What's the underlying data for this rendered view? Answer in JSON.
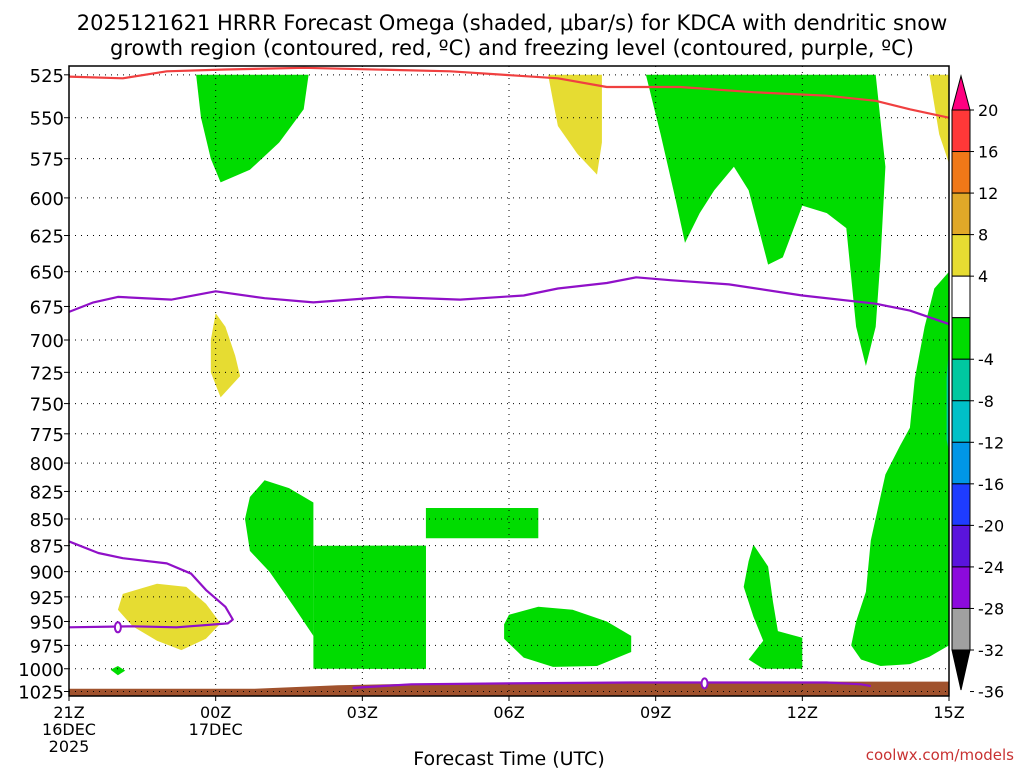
{
  "chart_data": {
    "type": "heatmap",
    "title_line1": "2025121621 HRRR Forecast Omega (shaded, μbar/s) for KDCA with dendritic snow",
    "title_line2": "growth region (contoured, red, ºC) and freezing level (contoured, purple, ºC)",
    "xlabel": "Forecast Time (UTC)",
    "credit": "coolwx.com/models",
    "x_ticks": [
      {
        "h": 0,
        "label": "21Z",
        "sub1": "16DEC",
        "sub2": "2025"
      },
      {
        "h": 3,
        "label": "00Z",
        "sub1": "17DEC",
        "sub2": ""
      },
      {
        "h": 6,
        "label": "03Z",
        "sub1": "",
        "sub2": ""
      },
      {
        "h": 9,
        "label": "06Z",
        "sub1": "",
        "sub2": ""
      },
      {
        "h": 12,
        "label": "09Z",
        "sub1": "",
        "sub2": ""
      },
      {
        "h": 15,
        "label": "12Z",
        "sub1": "",
        "sub2": ""
      },
      {
        "h": 18,
        "label": "15Z",
        "sub1": "",
        "sub2": ""
      }
    ],
    "xlim": [
      0,
      18
    ],
    "y_levels": [
      525,
      550,
      575,
      600,
      625,
      650,
      675,
      700,
      725,
      750,
      775,
      800,
      825,
      850,
      875,
      900,
      925,
      950,
      975,
      1000,
      1025
    ],
    "ylim": [
      520,
      1030
    ],
    "y_scale": "log-pressure",
    "grid": true,
    "colorbar": {
      "labels": [
        "20",
        "16",
        "12",
        "8",
        "4",
        "-4",
        "-8",
        "-12",
        "-16",
        "-20",
        "-24",
        "-28",
        "-32",
        "-36"
      ],
      "colors": [
        "#ff0080",
        "#ff3838",
        "#f07818",
        "#e0a828",
        "#e6dc32",
        "#ffffff",
        "#00dc00",
        "#00c8a0",
        "#00c0c8",
        "#0096e6",
        "#1e3cff",
        "#5a14dc",
        "#8c0adc",
        "#a0a0a0",
        "#000000"
      ]
    },
    "omega_regions": [
      {
        "color": "#00dc00",
        "pts": [
          [
            2.6,
            525
          ],
          [
            4.9,
            525
          ],
          [
            4.8,
            545
          ],
          [
            4.3,
            565
          ],
          [
            3.7,
            582
          ],
          [
            3.1,
            590
          ],
          [
            2.9,
            575
          ],
          [
            2.7,
            550
          ]
        ]
      },
      {
        "color": "#e6dc32",
        "pts": [
          [
            9.8,
            525
          ],
          [
            10.9,
            525
          ],
          [
            10.9,
            565
          ],
          [
            10.8,
            585
          ],
          [
            10.4,
            572
          ],
          [
            10.0,
            555
          ],
          [
            9.9,
            540
          ]
        ]
      },
      {
        "color": "#00dc00",
        "pts": [
          [
            11.8,
            525
          ],
          [
            16.5,
            525
          ],
          [
            16.7,
            580
          ],
          [
            16.6,
            640
          ],
          [
            16.5,
            690
          ],
          [
            16.3,
            720
          ],
          [
            16.1,
            690
          ],
          [
            15.9,
            620
          ],
          [
            15.5,
            610
          ],
          [
            15.0,
            605
          ],
          [
            14.6,
            640
          ],
          [
            14.3,
            645
          ],
          [
            13.9,
            595
          ],
          [
            13.6,
            580
          ],
          [
            13.2,
            595
          ],
          [
            12.9,
            610
          ],
          [
            12.6,
            630
          ],
          [
            12.4,
            600
          ],
          [
            12.1,
            560
          ]
        ]
      },
      {
        "color": "#e6dc32",
        "pts": [
          [
            17.6,
            525
          ],
          [
            18.0,
            525
          ],
          [
            18.0,
            578
          ],
          [
            17.8,
            560
          ]
        ]
      },
      {
        "color": "#e6dc32",
        "pts": [
          [
            3.0,
            680
          ],
          [
            3.2,
            690
          ],
          [
            3.4,
            712
          ],
          [
            3.5,
            728
          ],
          [
            3.1,
            745
          ],
          [
            2.9,
            725
          ],
          [
            2.9,
            700
          ]
        ]
      },
      {
        "color": "#00dc00",
        "pts": [
          [
            18.0,
            650
          ],
          [
            17.7,
            662
          ],
          [
            17.5,
            690
          ],
          [
            17.3,
            730
          ],
          [
            17.2,
            770
          ],
          [
            17.0,
            785
          ],
          [
            16.7,
            810
          ],
          [
            16.4,
            870
          ],
          [
            16.3,
            920
          ],
          [
            16.1,
            950
          ],
          [
            16.0,
            975
          ],
          [
            16.2,
            990
          ],
          [
            16.6,
            997
          ],
          [
            17.2,
            995
          ],
          [
            17.6,
            987
          ],
          [
            18.0,
            975
          ]
        ]
      },
      {
        "color": "#00c8a0",
        "pts": [
          [
            18.0,
            705
          ],
          [
            17.95,
            730
          ],
          [
            17.95,
            780
          ],
          [
            18.0,
            790
          ]
        ]
      },
      {
        "color": "#00dc00",
        "pts": [
          [
            4.0,
            815
          ],
          [
            4.5,
            822
          ],
          [
            5.0,
            835
          ],
          [
            5.0,
            875
          ],
          [
            7.3,
            875
          ],
          [
            7.3,
            1000
          ],
          [
            6.0,
            1000
          ],
          [
            6.0,
            875
          ],
          [
            5.0,
            875
          ],
          [
            5.0,
            1000
          ],
          [
            5.0,
            965
          ],
          [
            4.6,
            935
          ],
          [
            4.1,
            900
          ],
          [
            3.7,
            880
          ],
          [
            3.6,
            850
          ],
          [
            3.7,
            830
          ]
        ]
      },
      {
        "color": "#00dc00",
        "pts": [
          [
            7.3,
            840
          ],
          [
            9.6,
            840
          ],
          [
            9.6,
            868
          ],
          [
            7.3,
            868
          ]
        ]
      },
      {
        "color": "#00dc00",
        "pts": [
          [
            5.0,
            875
          ],
          [
            7.3,
            875
          ],
          [
            7.3,
            1000
          ],
          [
            5.0,
            1000
          ]
        ]
      },
      {
        "color": "#00dc00",
        "pts": [
          [
            9.0,
            943
          ],
          [
            9.6,
            935
          ],
          [
            10.3,
            938
          ],
          [
            11.0,
            950
          ],
          [
            11.5,
            965
          ],
          [
            11.5,
            982
          ],
          [
            10.8,
            997
          ],
          [
            9.9,
            998
          ],
          [
            9.3,
            988
          ],
          [
            8.9,
            968
          ],
          [
            8.9,
            953
          ]
        ]
      },
      {
        "color": "#00dc00",
        "pts": [
          [
            14.0,
            874
          ],
          [
            14.3,
            895
          ],
          [
            14.4,
            930
          ],
          [
            14.5,
            960
          ],
          [
            15.0,
            967
          ],
          [
            15.0,
            1000
          ],
          [
            14.2,
            1000
          ],
          [
            13.9,
            990
          ],
          [
            14.2,
            970
          ],
          [
            14.0,
            945
          ],
          [
            13.8,
            915
          ],
          [
            13.9,
            890
          ]
        ]
      },
      {
        "color": "#e6dc32",
        "pts": [
          [
            1.1,
            922
          ],
          [
            1.8,
            912
          ],
          [
            2.4,
            915
          ],
          [
            2.8,
            932
          ],
          [
            3.1,
            952
          ],
          [
            2.8,
            968
          ],
          [
            2.3,
            980
          ],
          [
            1.8,
            970
          ],
          [
            1.3,
            955
          ],
          [
            1.0,
            938
          ]
        ]
      },
      {
        "color": "#00dc00",
        "pts": [
          [
            0.85,
            1001
          ],
          [
            1.0,
            997
          ],
          [
            1.15,
            1002
          ],
          [
            1.0,
            1007
          ]
        ]
      }
    ],
    "ground": {
      "color": "#a0522d",
      "pts": [
        [
          0,
          1022
        ],
        [
          3.8,
          1022
        ],
        [
          5.5,
          1018
        ],
        [
          7.5,
          1016
        ],
        [
          9.5,
          1015
        ],
        [
          12,
          1014
        ],
        [
          15,
          1014
        ],
        [
          18,
          1014
        ],
        [
          18,
          1030
        ],
        [
          0,
          1030
        ]
      ]
    },
    "contours": [
      {
        "name": "dendritic -12",
        "color": "#f04040",
        "pts": [
          [
            0,
            526
          ],
          [
            1.1,
            527
          ],
          [
            2.0,
            523
          ],
          [
            3.2,
            522
          ],
          [
            4.8,
            521
          ],
          [
            7.8,
            523
          ],
          [
            10.0,
            527
          ],
          [
            11.0,
            532
          ],
          [
            12.5,
            532
          ],
          [
            14.0,
            535
          ],
          [
            15.5,
            537
          ],
          [
            16.5,
            540
          ],
          [
            17.2,
            545
          ],
          [
            18.0,
            550
          ]
        ]
      },
      {
        "name": "freezing level 0",
        "color": "#9010c8",
        "pts": [
          [
            0,
            679
          ],
          [
            0.5,
            672
          ],
          [
            1.0,
            668
          ],
          [
            2.1,
            670
          ],
          [
            3.0,
            664
          ],
          [
            4.0,
            669
          ],
          [
            5.0,
            672
          ],
          [
            6.5,
            668
          ],
          [
            8.0,
            670
          ],
          [
            9.3,
            667
          ],
          [
            10.0,
            662
          ],
          [
            11.0,
            658
          ],
          [
            11.6,
            654
          ],
          [
            12.3,
            656
          ],
          [
            13.5,
            659
          ],
          [
            15.0,
            667
          ],
          [
            16.5,
            673
          ],
          [
            17.2,
            678
          ],
          [
            18.0,
            688
          ]
        ]
      },
      {
        "name": "freezing level low",
        "color": "#9010c8",
        "pts": [
          [
            0,
            871
          ],
          [
            0.6,
            882
          ],
          [
            1.1,
            887
          ],
          [
            2.0,
            892
          ],
          [
            2.5,
            902
          ],
          [
            2.8,
            918
          ],
          [
            3.2,
            935
          ],
          [
            3.35,
            948
          ],
          [
            3.25,
            952
          ],
          [
            2.2,
            956
          ],
          [
            1.3,
            955
          ],
          [
            0,
            956
          ]
        ]
      },
      {
        "name": "freezing level surface",
        "color": "#9010c8",
        "pts": [
          [
            5.8,
            1021
          ],
          [
            7.0,
            1017
          ],
          [
            9.0,
            1016
          ],
          [
            11.5,
            1015
          ],
          [
            13.5,
            1015
          ],
          [
            14.6,
            1015
          ],
          [
            15.5,
            1015
          ],
          [
            16.2,
            1017
          ],
          [
            16.4,
            1019
          ]
        ]
      }
    ],
    "small_rings": [
      [
        1.0,
        956
      ],
      [
        13.0,
        1016
      ]
    ]
  }
}
